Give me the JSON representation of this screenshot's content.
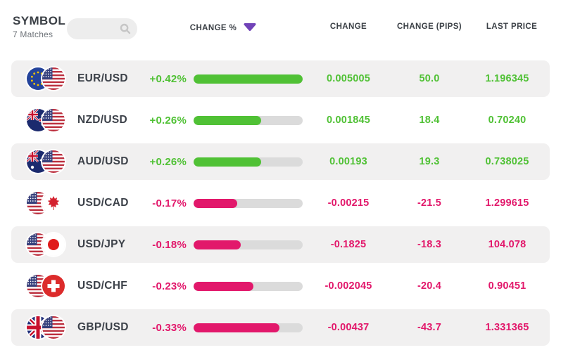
{
  "header": {
    "symbol_label": "SYMBOL",
    "matches_text": "7 Matches",
    "search": {
      "value": "",
      "placeholder": ""
    },
    "columns": {
      "change_pct": "CHANGE %",
      "change": "CHANGE",
      "change_pips": "CHANGE (PIPS)",
      "last_price": "LAST PRICE"
    },
    "sort": {
      "column": "CHANGE %",
      "direction": "desc"
    }
  },
  "colors": {
    "positive": "#50C135",
    "negative": "#E2186B",
    "accent_purple": "#7143B8",
    "bar_track": "#DBDBDB",
    "row_alt_bg": "#F1F0F0",
    "text_dark": "#3C4149",
    "text_gray": "#6F747A"
  },
  "rows": [
    {
      "symbol": "EUR/USD",
      "base_flag": "eu",
      "quote_flag": "us",
      "change_pct": "+0.42%",
      "change": "0.005005",
      "change_pips": "50.0",
      "last_price": "1.196345",
      "direction": "up",
      "bar_fill_pct": 100
    },
    {
      "symbol": "NZD/USD",
      "base_flag": "nz",
      "quote_flag": "us",
      "change_pct": "+0.26%",
      "change": "0.001845",
      "change_pips": "18.4",
      "last_price": "0.70240",
      "direction": "up",
      "bar_fill_pct": 62
    },
    {
      "symbol": "AUD/USD",
      "base_flag": "au",
      "quote_flag": "us",
      "change_pct": "+0.26%",
      "change": "0.00193",
      "change_pips": "19.3",
      "last_price": "0.738025",
      "direction": "up",
      "bar_fill_pct": 62
    },
    {
      "symbol": "USD/CAD",
      "base_flag": "us",
      "quote_flag": "ca",
      "change_pct": "-0.17%",
      "change": "-0.00215",
      "change_pips": "-21.5",
      "last_price": "1.299615",
      "direction": "down",
      "bar_fill_pct": 40
    },
    {
      "symbol": "USD/JPY",
      "base_flag": "us",
      "quote_flag": "jp",
      "change_pct": "-0.18%",
      "change": "-0.1825",
      "change_pips": "-18.3",
      "last_price": "104.078",
      "direction": "down",
      "bar_fill_pct": 43
    },
    {
      "symbol": "USD/CHF",
      "base_flag": "us",
      "quote_flag": "ch",
      "change_pct": "-0.23%",
      "change": "-0.002045",
      "change_pips": "-20.4",
      "last_price": "0.90451",
      "direction": "down",
      "bar_fill_pct": 55
    },
    {
      "symbol": "GBP/USD",
      "base_flag": "gb",
      "quote_flag": "us",
      "change_pct": "-0.33%",
      "change": "-0.00437",
      "change_pips": "-43.7",
      "last_price": "1.331365",
      "direction": "down",
      "bar_fill_pct": 79
    }
  ]
}
